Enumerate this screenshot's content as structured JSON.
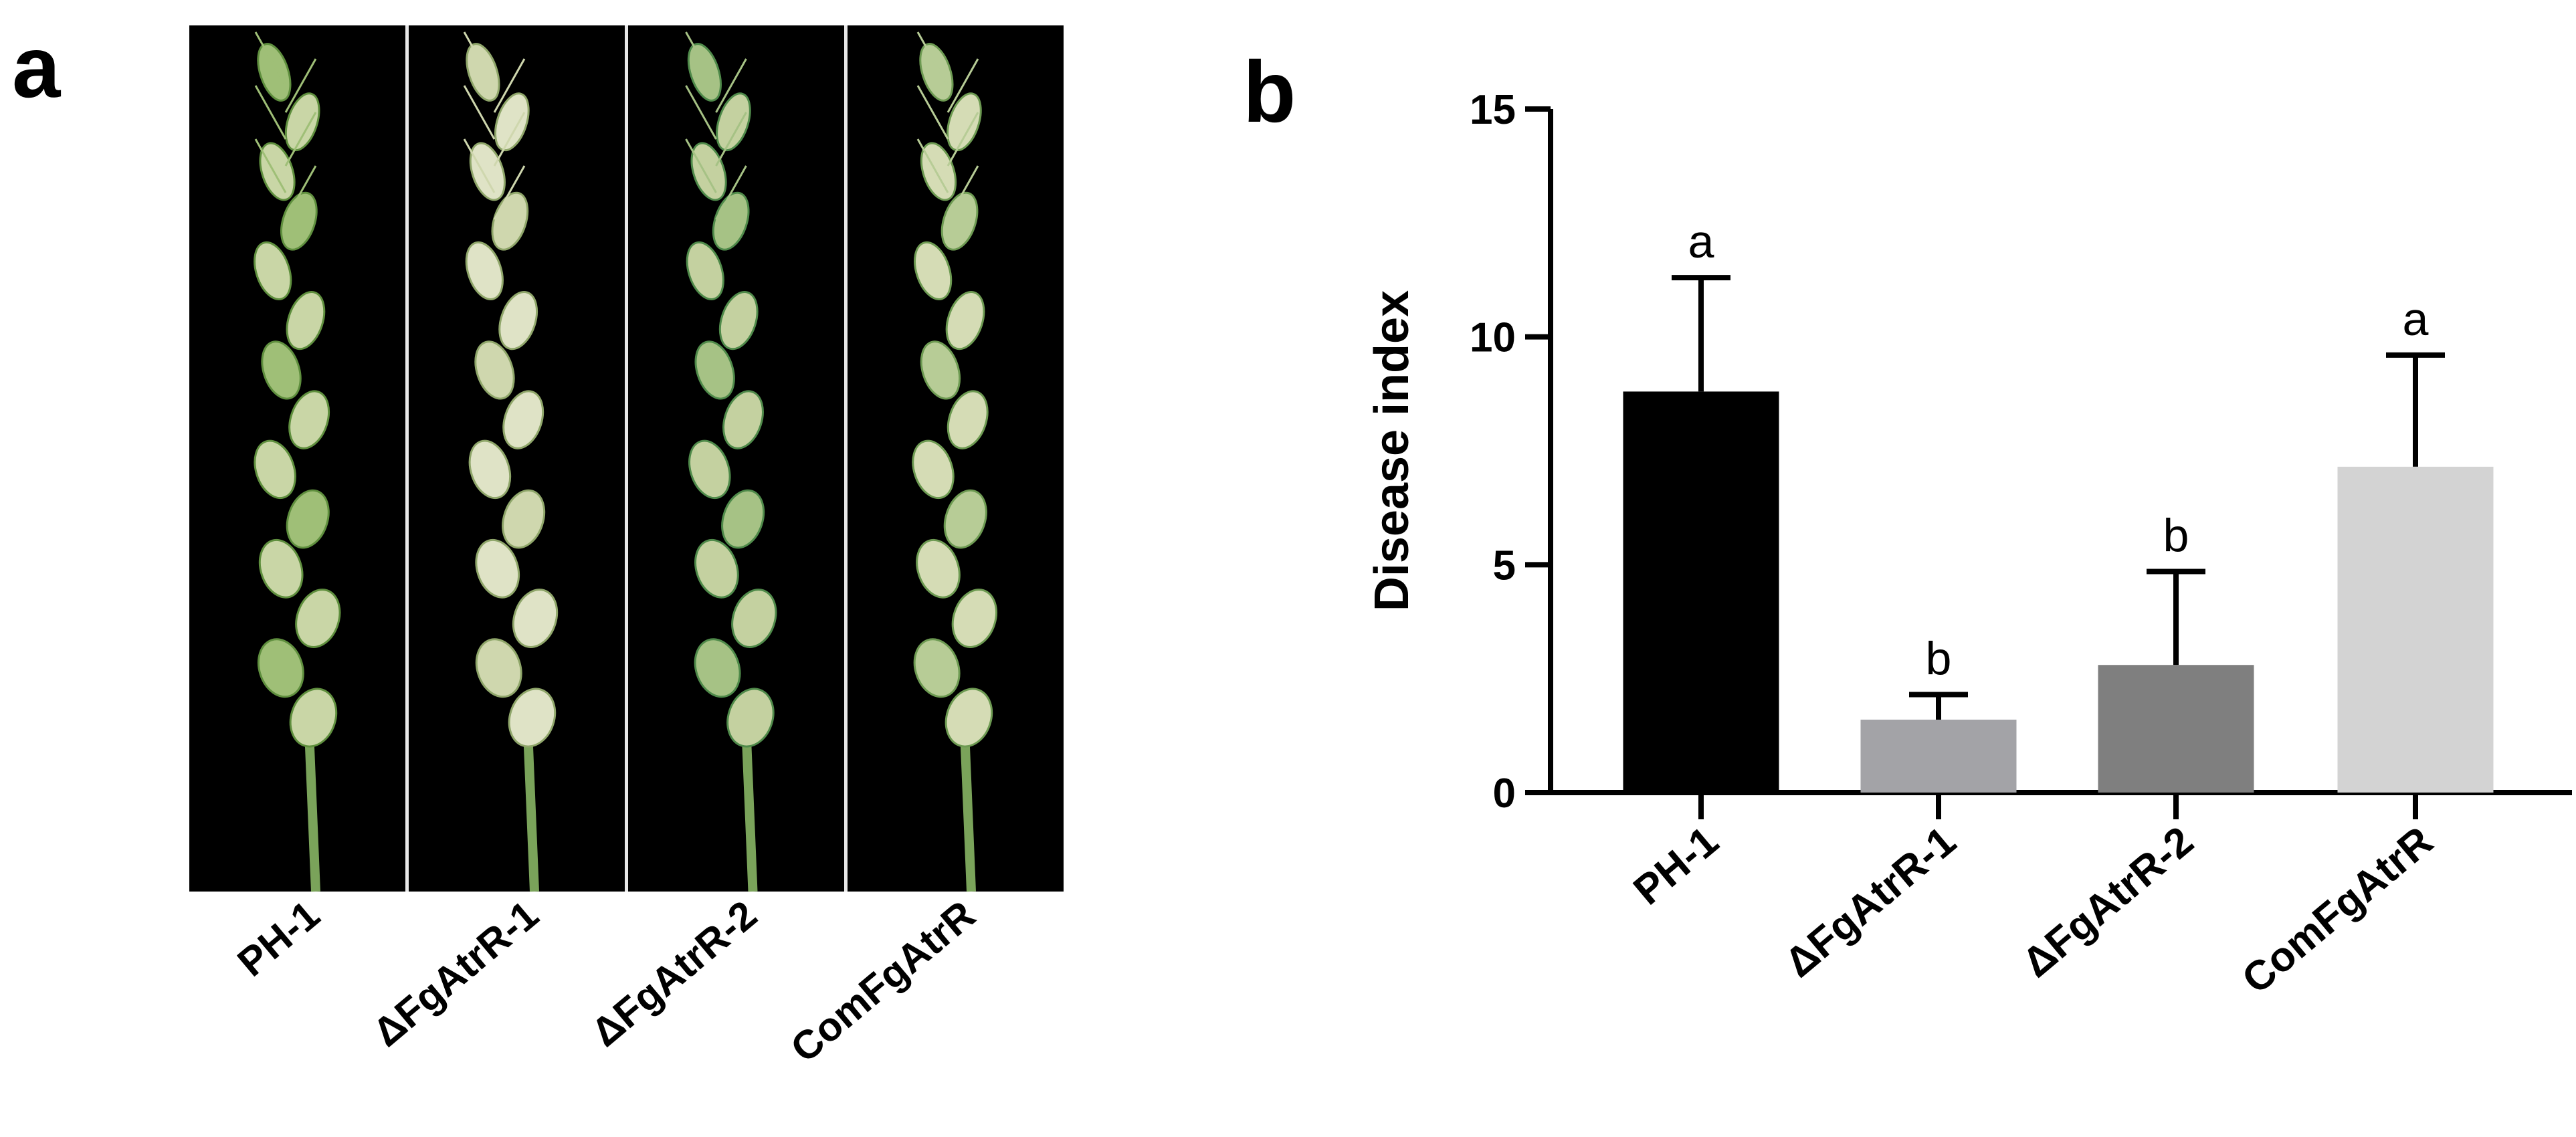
{
  "panels": {
    "a": "a",
    "b": "b"
  },
  "photo_panel": {
    "strains": [
      "PH-1",
      "ΔFgAtrR-1",
      "ΔFgAtrR-2",
      "ComFgAtrR"
    ],
    "background_color": "#000000"
  },
  "chart_data": {
    "type": "bar",
    "categories": [
      "PH-1",
      "ΔFgAtrR-1",
      "ΔFgAtrR-2",
      "ComFgAtrR"
    ],
    "series": [
      {
        "values": [
          8.8,
          1.6,
          2.8,
          7.15
        ],
        "errors": [
          2.5,
          0.55,
          2.05,
          2.45
        ]
      }
    ],
    "significance": [
      "a",
      "b",
      "b",
      "a"
    ],
    "colors": [
      "#000000",
      "#a3a3a7",
      "#7f7f7f",
      "#d3d3d3"
    ],
    "xlabel": "",
    "ylabel": "Disease index",
    "ylim": [
      0,
      15
    ],
    "yticks": [
      0,
      5,
      10,
      15
    ],
    "grid": false
  }
}
